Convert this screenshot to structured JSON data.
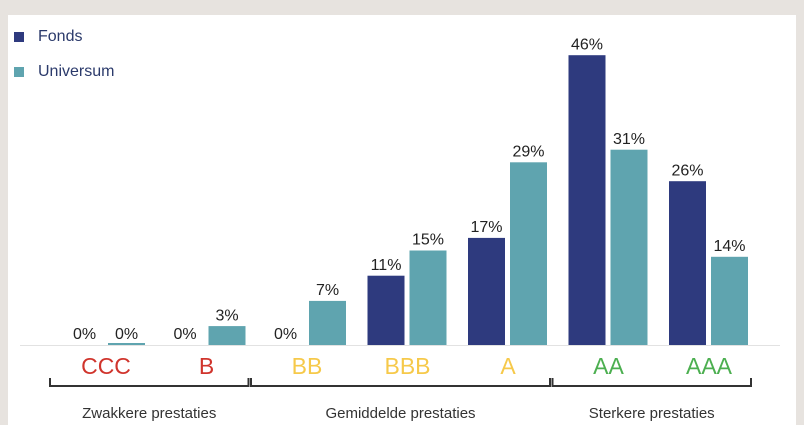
{
  "chart_data": {
    "type": "bar",
    "categories": [
      "CCC",
      "B",
      "BB",
      "BBB",
      "A",
      "AA",
      "AAA"
    ],
    "category_colors": [
      "#d0342c",
      "#d0342c",
      "#f6c94a",
      "#f6c94a",
      "#f6c94a",
      "#4caf50",
      "#4caf50"
    ],
    "series": [
      {
        "name": "Fonds",
        "color": "#2e3a7e",
        "values": [
          0,
          0,
          0,
          11,
          17,
          46,
          26
        ],
        "value_labels": [
          "0%",
          "0%",
          "0%",
          "11%",
          "17%",
          "46%",
          "26%"
        ]
      },
      {
        "name": "Universum",
        "color": "#5fa4af",
        "values": [
          0,
          3,
          7,
          15,
          29,
          31,
          14
        ],
        "value_labels": [
          "0%",
          "3%",
          "7%",
          "15%",
          "29%",
          "31%",
          "14%"
        ]
      }
    ],
    "groups": [
      {
        "label": "Zwakkere prestaties",
        "categories": [
          "CCC",
          "B"
        ]
      },
      {
        "label": "Gemiddelde prestaties",
        "categories": [
          "BB",
          "BBB",
          "A"
        ]
      },
      {
        "label": "Sterkere prestaties",
        "categories": [
          "AA",
          "AAA"
        ]
      }
    ]
  }
}
